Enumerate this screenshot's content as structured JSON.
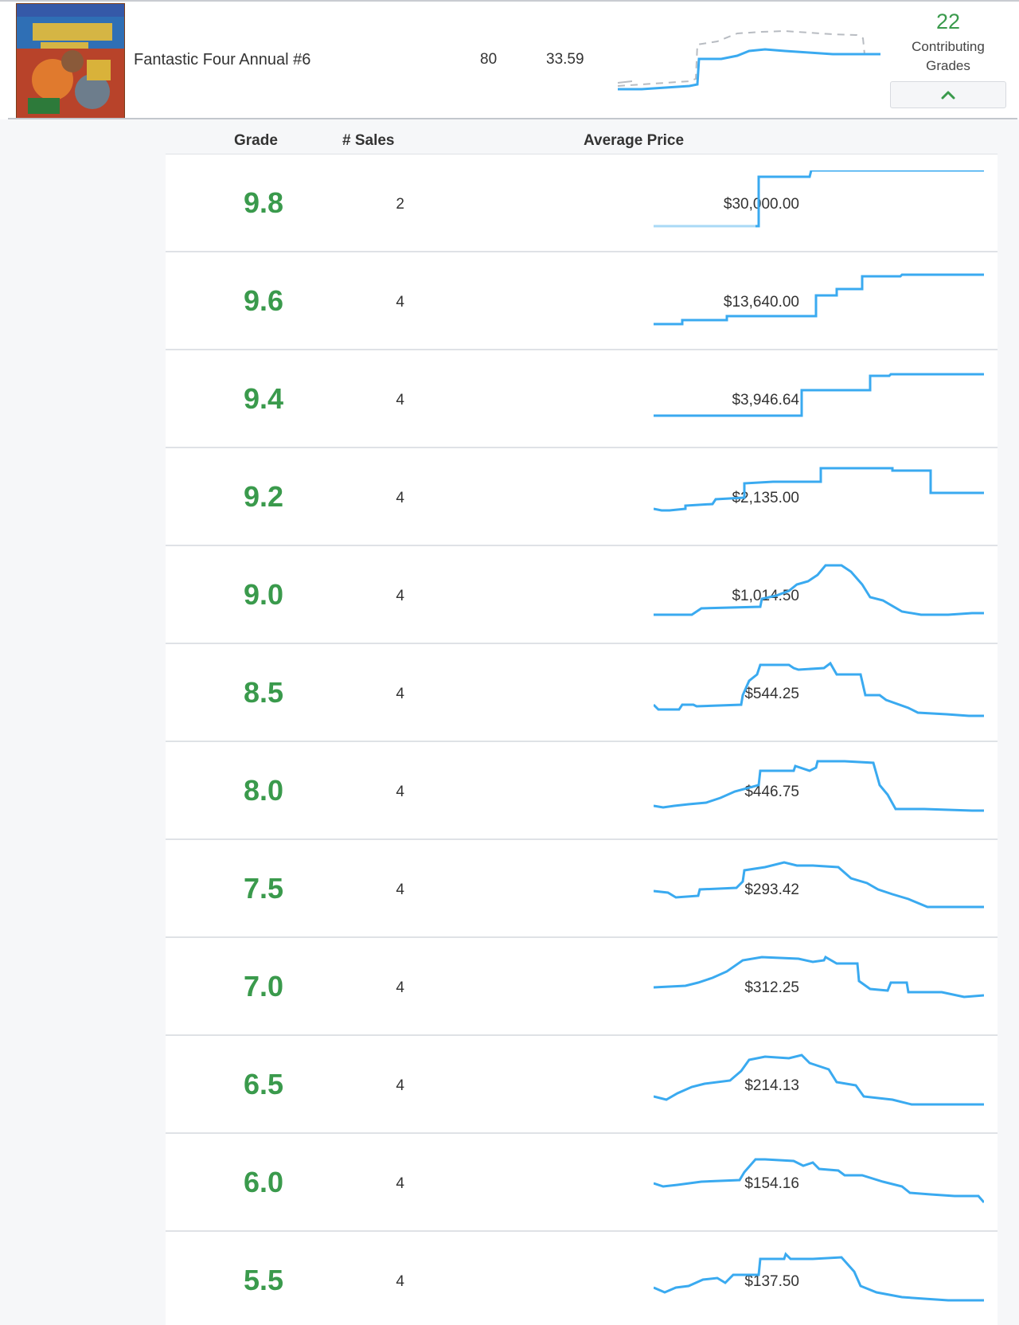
{
  "summary": {
    "title": "Fantastic Four Annual #6",
    "sales_total": "80",
    "avg_price": "33.59",
    "contributing_count": "22",
    "contributing_label": "Contributing Grades"
  },
  "table": {
    "headers": {
      "grade": "Grade",
      "sales": "# Sales",
      "avg": "Average Price"
    },
    "rows": [
      {
        "grade": "9.8",
        "sales": "2",
        "avg": "$30,000.00"
      },
      {
        "grade": "9.6",
        "sales": "4",
        "avg": "$13,640.00"
      },
      {
        "grade": "9.4",
        "sales": "4",
        "avg": "$3,946.64"
      },
      {
        "grade": "9.2",
        "sales": "4",
        "avg": "$2,135.00"
      },
      {
        "grade": "9.0",
        "sales": "4",
        "avg": "$1,014.50"
      },
      {
        "grade": "8.5",
        "sales": "4",
        "avg": "$544.25"
      },
      {
        "grade": "8.0",
        "sales": "4",
        "avg": "$446.75"
      },
      {
        "grade": "7.5",
        "sales": "4",
        "avg": "$293.42"
      },
      {
        "grade": "7.0",
        "sales": "4",
        "avg": "$312.25"
      },
      {
        "grade": "6.5",
        "sales": "4",
        "avg": "$214.13"
      },
      {
        "grade": "6.0",
        "sales": "4",
        "avg": "$154.16"
      },
      {
        "grade": "5.5",
        "sales": "4",
        "avg": "$137.50"
      }
    ]
  },
  "colors": {
    "accent_green": "#3a9a4c",
    "spark_blue": "#3aaaf0",
    "spark_dashed": "#b8bcc2"
  },
  "icons": {
    "collapse": "chevron-up-icon"
  }
}
